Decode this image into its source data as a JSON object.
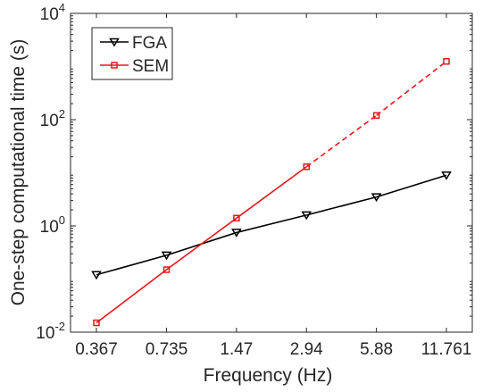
{
  "chart_data": {
    "type": "line",
    "xlabel": "Frequency (Hz)",
    "ylabel": "One-step computational time (s)",
    "x_scale": "log2",
    "y_scale": "log10",
    "x": [
      0.367,
      0.735,
      1.47,
      2.94,
      5.88,
      11.761
    ],
    "x_tick_labels": [
      "0.367",
      "0.735",
      "1.47",
      "2.94",
      "5.88",
      "11.761"
    ],
    "y_ticks": [
      {
        "base": "10",
        "exp": "-2",
        "value": 0.01
      },
      {
        "base": "10",
        "exp": "0",
        "value": 1
      },
      {
        "base": "10",
        "exp": "2",
        "value": 100
      },
      {
        "base": "10",
        "exp": "4",
        "value": 10000
      }
    ],
    "ylim": [
      0.01,
      10000
    ],
    "grid": false,
    "legend_position": "top-left",
    "series": [
      {
        "name": "FGA",
        "color": "#000000",
        "marker": "triangle-down",
        "values": [
          0.12,
          0.28,
          0.75,
          1.6,
          3.5,
          9.0
        ],
        "dashed_from_index": null
      },
      {
        "name": "SEM",
        "color": "#e8161b",
        "marker": "square",
        "values": [
          0.015,
          0.15,
          1.4,
          13,
          120,
          1250
        ],
        "dashed_from_index": 3
      }
    ]
  }
}
